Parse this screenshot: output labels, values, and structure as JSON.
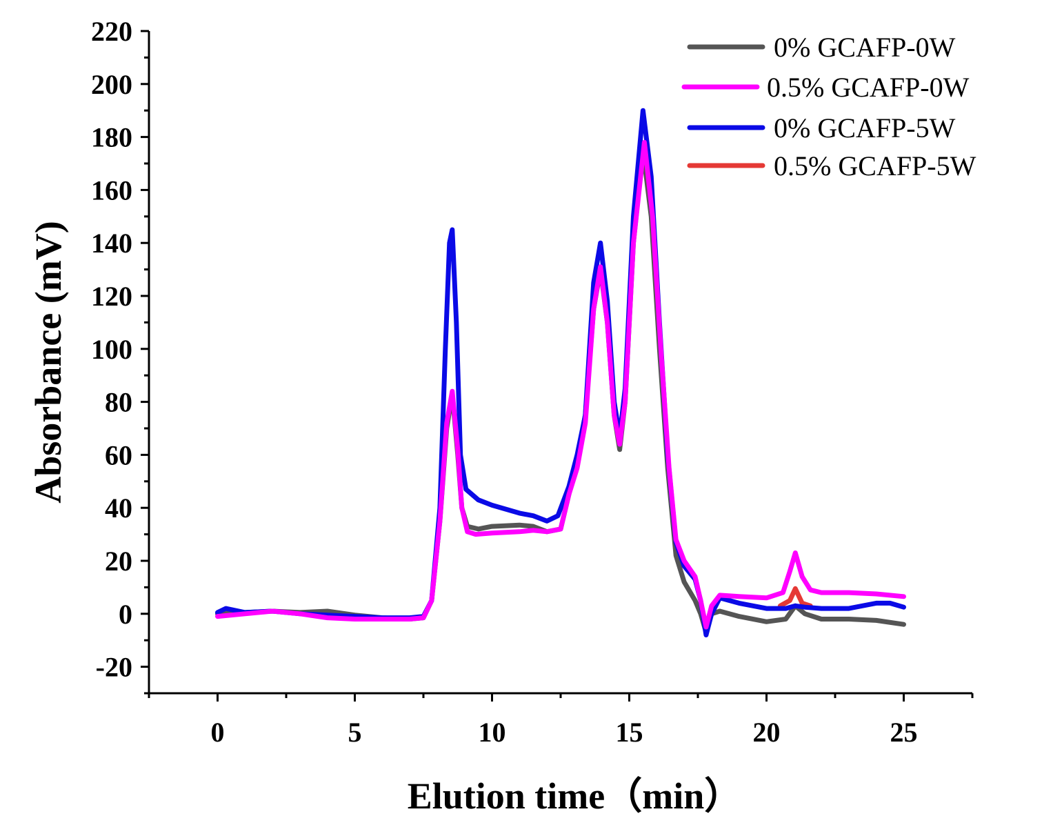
{
  "chart_data": {
    "type": "line",
    "title": "",
    "xlabel": "Elution time（min）",
    "ylabel": "Absorbance (mV)",
    "xlim": [
      -2.5,
      27.5
    ],
    "ylim": [
      -30,
      220
    ],
    "xticks": [
      0,
      5,
      10,
      15,
      20,
      25
    ],
    "xtick_labels": [
      "0",
      "5",
      "10",
      "15",
      "20",
      "25"
    ],
    "yticks": [
      -20,
      0,
      20,
      40,
      60,
      80,
      100,
      120,
      140,
      160,
      180,
      200,
      220
    ],
    "ytick_labels": [
      "-20",
      "0",
      "20",
      "40",
      "60",
      "80",
      "100",
      "120",
      "140",
      "160",
      "180",
      "200",
      "220"
    ],
    "grid": false,
    "legend_position": "top-right",
    "series": [
      {
        "name": "0% GCAFP-0W",
        "color": "#555555",
        "points": [
          [
            0,
            0
          ],
          [
            1,
            0.5
          ],
          [
            2,
            1
          ],
          [
            3,
            0.5
          ],
          [
            4,
            1
          ],
          [
            5,
            -0.5
          ],
          [
            6,
            -1.5
          ],
          [
            7,
            -2
          ],
          [
            7.5,
            -1.5
          ],
          [
            7.8,
            5
          ],
          [
            8.1,
            35
          ],
          [
            8.35,
            70
          ],
          [
            8.55,
            83
          ],
          [
            8.75,
            60
          ],
          [
            8.9,
            40
          ],
          [
            9.1,
            33
          ],
          [
            9.5,
            32
          ],
          [
            10,
            33
          ],
          [
            11,
            33.5
          ],
          [
            11.5,
            33
          ],
          [
            12,
            31
          ],
          [
            12.5,
            32
          ],
          [
            12.8,
            45
          ],
          [
            13.1,
            58
          ],
          [
            13.4,
            75
          ],
          [
            13.7,
            115
          ],
          [
            13.95,
            130
          ],
          [
            14.2,
            110
          ],
          [
            14.45,
            75
          ],
          [
            14.65,
            62
          ],
          [
            14.85,
            80
          ],
          [
            15.15,
            140
          ],
          [
            15.5,
            175
          ],
          [
            15.8,
            150
          ],
          [
            16.1,
            100
          ],
          [
            16.4,
            55
          ],
          [
            16.7,
            22
          ],
          [
            17,
            12
          ],
          [
            17.4,
            5
          ],
          [
            17.6,
            0
          ],
          [
            17.8,
            -7
          ],
          [
            18,
            0
          ],
          [
            18.3,
            1
          ],
          [
            19,
            -1
          ],
          [
            20,
            -3
          ],
          [
            20.7,
            -2
          ],
          [
            21.05,
            3
          ],
          [
            21.4,
            0
          ],
          [
            22,
            -2
          ],
          [
            23,
            -2
          ],
          [
            24,
            -2.5
          ],
          [
            25,
            -4
          ]
        ]
      },
      {
        "name": "0.5% GCAFP-0W",
        "color": "#ff00ff",
        "points": [
          [
            0,
            -1
          ],
          [
            1,
            0
          ],
          [
            2,
            1
          ],
          [
            3,
            0
          ],
          [
            4,
            -1.5
          ],
          [
            5,
            -2
          ],
          [
            6,
            -2
          ],
          [
            7,
            -2
          ],
          [
            7.5,
            -1.5
          ],
          [
            7.8,
            5
          ],
          [
            8.1,
            35
          ],
          [
            8.35,
            72
          ],
          [
            8.55,
            84
          ],
          [
            8.75,
            62
          ],
          [
            8.9,
            40
          ],
          [
            9.1,
            31
          ],
          [
            9.4,
            30
          ],
          [
            10,
            30.5
          ],
          [
            11,
            31
          ],
          [
            11.5,
            31.5
          ],
          [
            12,
            31
          ],
          [
            12.5,
            32
          ],
          [
            12.8,
            45
          ],
          [
            13.1,
            55
          ],
          [
            13.4,
            72
          ],
          [
            13.7,
            115
          ],
          [
            13.95,
            131
          ],
          [
            14.2,
            110
          ],
          [
            14.45,
            75
          ],
          [
            14.65,
            64
          ],
          [
            14.85,
            80
          ],
          [
            15.15,
            140
          ],
          [
            15.55,
            178
          ],
          [
            15.85,
            150
          ],
          [
            16.15,
            100
          ],
          [
            16.45,
            55
          ],
          [
            16.7,
            28
          ],
          [
            17,
            20
          ],
          [
            17.4,
            14
          ],
          [
            17.6,
            5
          ],
          [
            17.8,
            -5
          ],
          [
            18,
            3
          ],
          [
            18.3,
            7
          ],
          [
            19,
            6.5
          ],
          [
            20,
            6
          ],
          [
            20.6,
            8
          ],
          [
            20.85,
            16
          ],
          [
            21.05,
            23
          ],
          [
            21.3,
            14
          ],
          [
            21.6,
            9
          ],
          [
            22,
            8
          ],
          [
            23,
            8
          ],
          [
            24,
            7.5
          ],
          [
            25,
            6.5
          ]
        ]
      },
      {
        "name": "0% GCAFP-5W",
        "color": "#0a0ae6",
        "points": [
          [
            0,
            0.5
          ],
          [
            0.3,
            2
          ],
          [
            1,
            0.5
          ],
          [
            2,
            1
          ],
          [
            3,
            0
          ],
          [
            4,
            -0.5
          ],
          [
            5,
            -1
          ],
          [
            6,
            -1.5
          ],
          [
            7,
            -1.5
          ],
          [
            7.5,
            -1
          ],
          [
            7.8,
            5
          ],
          [
            8.1,
            40
          ],
          [
            8.3,
            100
          ],
          [
            8.45,
            140
          ],
          [
            8.55,
            145
          ],
          [
            8.7,
            110
          ],
          [
            8.85,
            60
          ],
          [
            9.05,
            47
          ],
          [
            9.5,
            43
          ],
          [
            10,
            41
          ],
          [
            11,
            38
          ],
          [
            11.5,
            37
          ],
          [
            12,
            35
          ],
          [
            12.4,
            37
          ],
          [
            12.8,
            48
          ],
          [
            13.1,
            60
          ],
          [
            13.4,
            75
          ],
          [
            13.7,
            125
          ],
          [
            13.95,
            140
          ],
          [
            14.2,
            118
          ],
          [
            14.45,
            80
          ],
          [
            14.65,
            67
          ],
          [
            14.85,
            85
          ],
          [
            15.15,
            150
          ],
          [
            15.5,
            190
          ],
          [
            15.8,
            165
          ],
          [
            16.1,
            110
          ],
          [
            16.4,
            60
          ],
          [
            16.7,
            27
          ],
          [
            17,
            18
          ],
          [
            17.4,
            13
          ],
          [
            17.6,
            5
          ],
          [
            17.8,
            -8
          ],
          [
            18,
            0
          ],
          [
            18.3,
            6
          ],
          [
            19,
            4
          ],
          [
            20,
            2
          ],
          [
            20.7,
            2
          ],
          [
            21.05,
            3
          ],
          [
            21.4,
            2.5
          ],
          [
            22,
            2
          ],
          [
            23,
            2
          ],
          [
            24,
            4
          ],
          [
            24.5,
            4
          ],
          [
            25,
            2.5
          ]
        ]
      },
      {
        "name": "0.5% GCAFP-5W",
        "color": "#e53935",
        "points": [
          [
            20.5,
            3
          ],
          [
            20.85,
            5
          ],
          [
            21.05,
            9.5
          ],
          [
            21.3,
            4
          ],
          [
            21.6,
            3
          ]
        ]
      }
    ]
  }
}
